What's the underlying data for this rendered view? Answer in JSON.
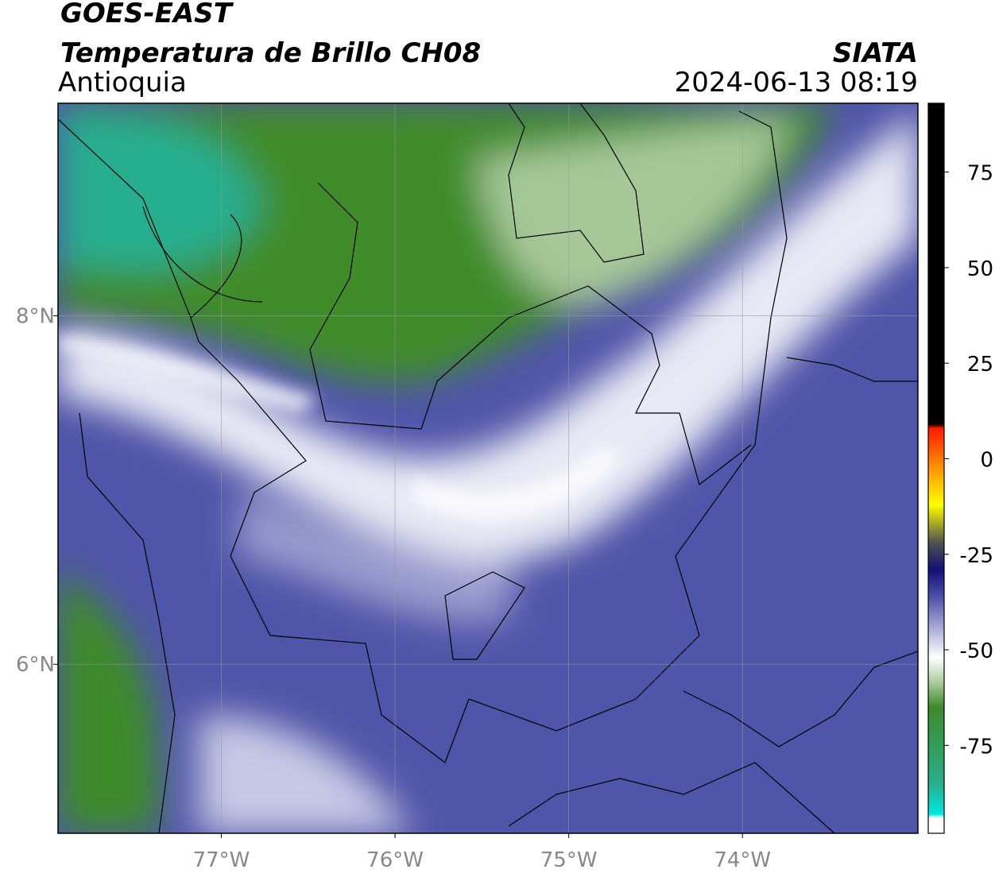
{
  "header": {
    "title": "GOES-EAST",
    "subtitle": "Temperatura de Brillo CH08",
    "source": "SIATA",
    "region": "Antioquia",
    "timestamp": "2024-06-13 08:19"
  },
  "map": {
    "xlim": [
      -77.94,
      -72.99
    ],
    "ylim": [
      5.03,
      9.22
    ],
    "xticks": [
      {
        "value": -77,
        "label": "77°W"
      },
      {
        "value": -76,
        "label": "76°W"
      },
      {
        "value": -75,
        "label": "75°W"
      },
      {
        "value": -74,
        "label": "74°W"
      }
    ],
    "yticks": [
      {
        "value": 6,
        "label": "6°N"
      },
      {
        "value": 8,
        "label": "8°N"
      }
    ],
    "grid": true
  },
  "colorbar": {
    "lim": [
      -98,
      93
    ],
    "ticks": [
      -75,
      -50,
      -25,
      0,
      25,
      50,
      75
    ],
    "stops": [
      {
        "value": -98,
        "color": "#ffffff"
      },
      {
        "value": -94,
        "color": "#ffffff"
      },
      {
        "value": -93,
        "color": "#00e8e0"
      },
      {
        "value": -85,
        "color": "#2aae8c"
      },
      {
        "value": -65,
        "color": "#3d8a2a"
      },
      {
        "value": -58,
        "color": "#b5cfa5"
      },
      {
        "value": -52,
        "color": "#ffffff"
      },
      {
        "value": -45,
        "color": "#b2b2da"
      },
      {
        "value": -36,
        "color": "#4a50a8"
      },
      {
        "value": -29,
        "color": "#101075"
      },
      {
        "value": -22,
        "color": "#505050"
      },
      {
        "value": -12,
        "color": "#ffff00"
      },
      {
        "value": -3,
        "color": "#ff9a00"
      },
      {
        "value": 8,
        "color": "#ff1a00"
      },
      {
        "value": 9,
        "color": "#000000"
      },
      {
        "value": 93,
        "color": "#000000"
      }
    ]
  }
}
